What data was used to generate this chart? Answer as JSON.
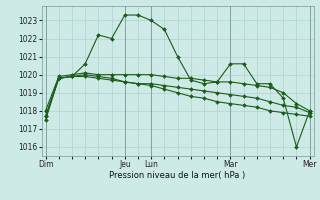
{
  "title": "",
  "xlabel": "Pression niveau de la mer( hPa )",
  "background_color": "#ceeae7",
  "grid_color": "#aaccca",
  "line_color": "#1a5c1a",
  "ylim": [
    1015.5,
    1023.8
  ],
  "yticks": [
    1016,
    1017,
    1018,
    1019,
    1020,
    1021,
    1022,
    1023
  ],
  "day_labels": [
    "Dim",
    "",
    "Jeu",
    "Lun",
    "",
    "Mar",
    "",
    "Mer"
  ],
  "day_tick_labels": [
    "Dim",
    "Jeu",
    "Lun",
    "Mar",
    "Mer"
  ],
  "day_tick_pos": [
    0,
    6,
    8,
    14,
    20
  ],
  "xlim": [
    -0.3,
    20.3
  ],
  "series1": [
    1017.5,
    1019.8,
    1019.9,
    1020.6,
    1022.2,
    1022.0,
    1023.3,
    1023.3,
    1023.0,
    1022.5,
    1021.0,
    1019.7,
    1019.5,
    1019.6,
    1020.6,
    1020.6,
    1019.5,
    1019.5,
    1018.7,
    1016.0,
    1018.0
  ],
  "series2": [
    1018.0,
    1019.9,
    1020.0,
    1020.1,
    1020.0,
    1020.0,
    1020.0,
    1020.0,
    1020.0,
    1019.9,
    1019.8,
    1019.8,
    1019.7,
    1019.6,
    1019.6,
    1019.5,
    1019.4,
    1019.3,
    1019.0,
    1018.4,
    1018.0
  ],
  "series3": [
    1017.7,
    1019.8,
    1019.9,
    1019.9,
    1019.8,
    1019.7,
    1019.6,
    1019.5,
    1019.5,
    1019.4,
    1019.3,
    1019.2,
    1019.1,
    1019.0,
    1018.9,
    1018.8,
    1018.7,
    1018.5,
    1018.3,
    1018.2,
    1017.9
  ],
  "series4": [
    1017.7,
    1019.8,
    1019.9,
    1020.0,
    1019.9,
    1019.8,
    1019.6,
    1019.5,
    1019.4,
    1019.2,
    1019.0,
    1018.8,
    1018.7,
    1018.5,
    1018.4,
    1018.3,
    1018.2,
    1018.0,
    1017.9,
    1017.8,
    1017.7
  ]
}
